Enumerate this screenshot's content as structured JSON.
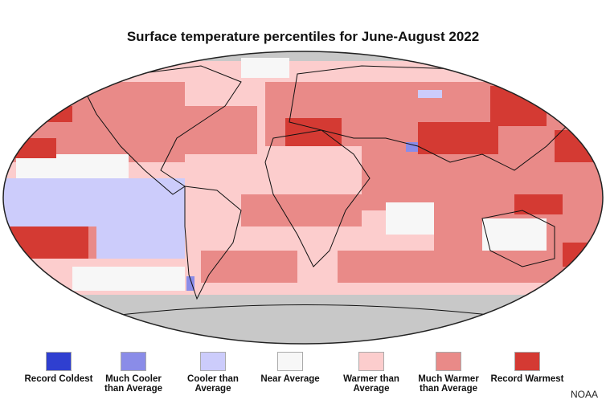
{
  "title": "Surface temperature percentiles for June-August 2022",
  "legend": [
    {
      "label": "Record Coldest",
      "color": "#2f3fd0"
    },
    {
      "label": "Much Cooler than Average",
      "color": "#8a8ce8"
    },
    {
      "label": "Cooler than Average",
      "color": "#ccccfb"
    },
    {
      "label": "Near Average",
      "color": "#f7f7f7"
    },
    {
      "label": "Warmer than Average",
      "color": "#fccdcd"
    },
    {
      "label": "Much Warmer than Average",
      "color": "#e98a88"
    },
    {
      "label": "Record Warmest",
      "color": "#d43a33"
    }
  ],
  "no_data_color": "#c8c8c8",
  "credit": "NOAA"
}
